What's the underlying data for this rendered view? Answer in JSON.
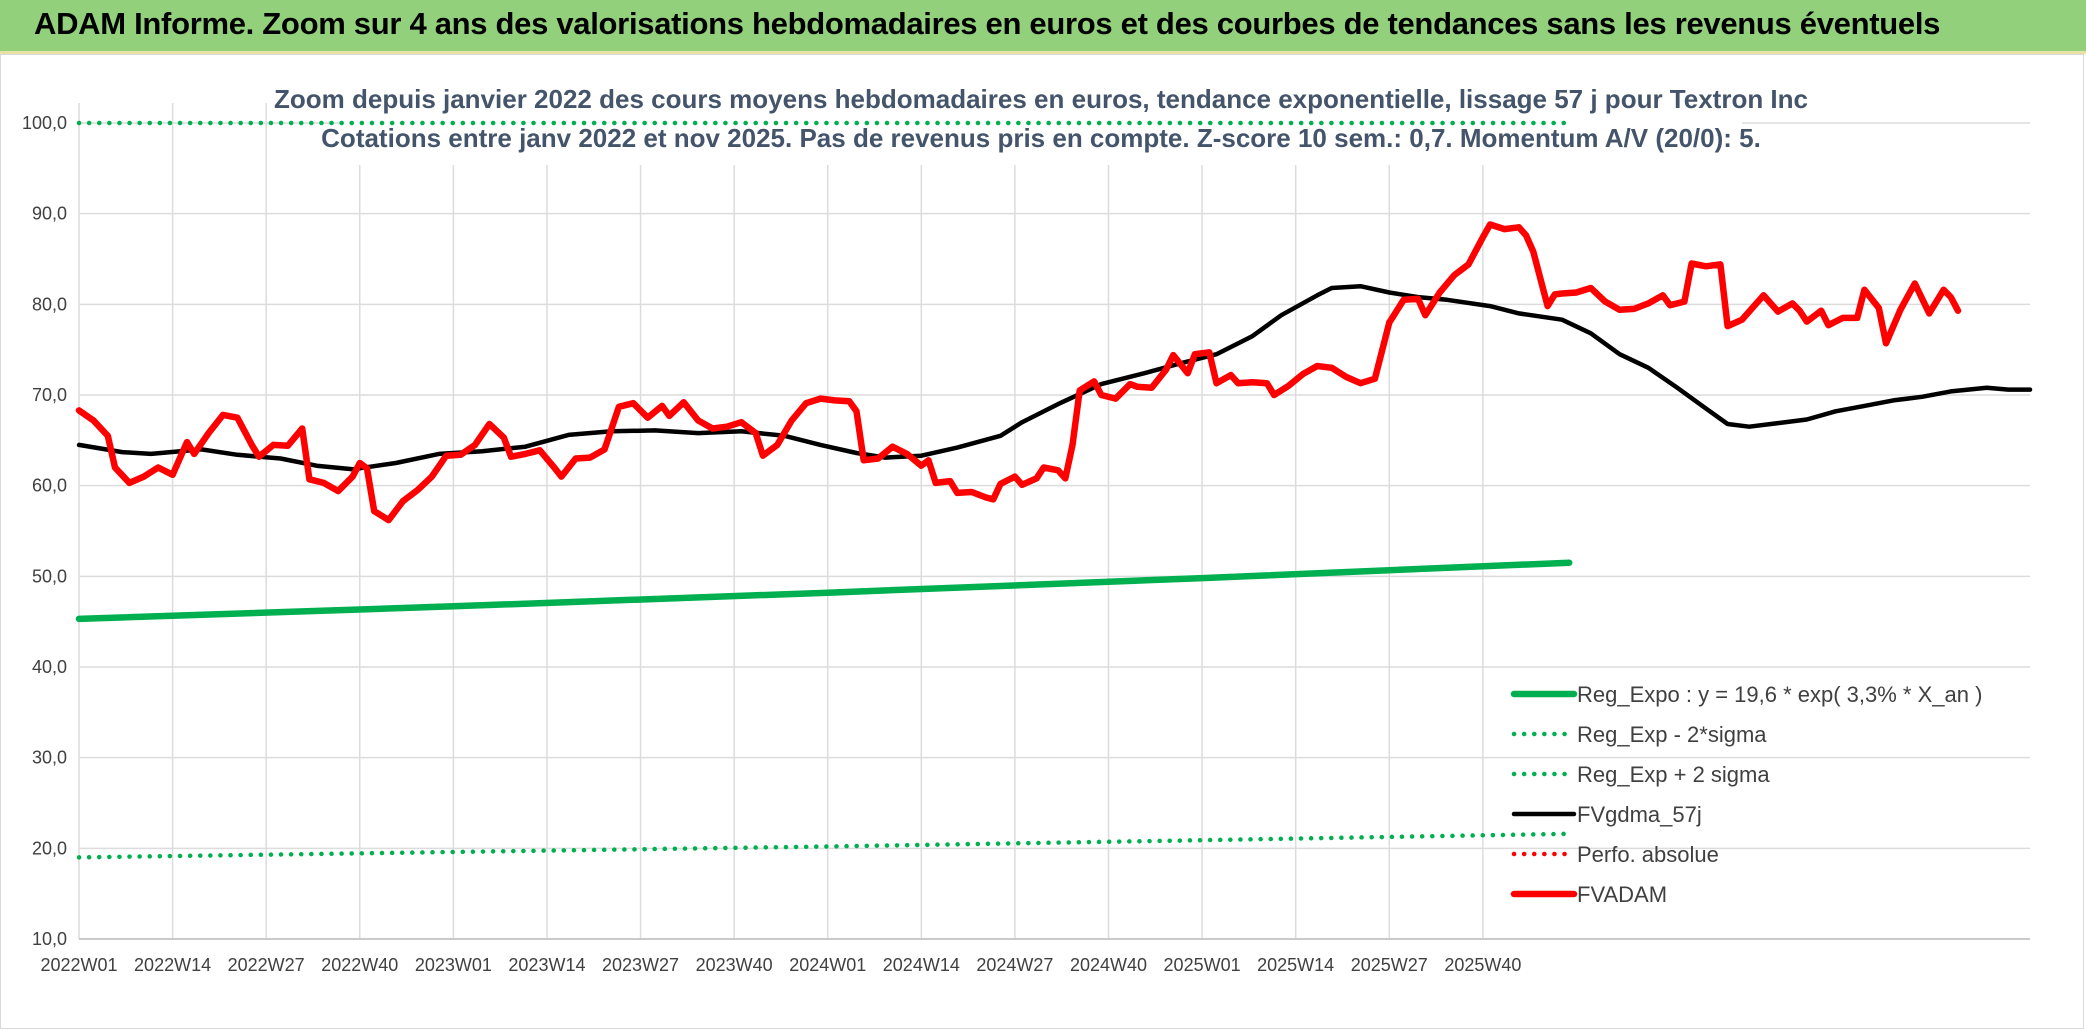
{
  "header": {
    "title": "ADAM Informe. Zoom sur 4 ans des valorisations hebdomadaires en euros et des courbes de tendances sans les revenus éventuels"
  },
  "chart_data": {
    "type": "line",
    "title_lines": [
      "Zoom depuis janvier 2022 des cours moyens hebdomadaires en euros, tendance exponentielle, lissage 57 j pour Textron Inc",
      "Cotations entre janv 2022 et nov 2025. Pas de revenus pris en compte. Z-score 10 sem.: 0,7. Momentum A/V (20/0): 5."
    ],
    "xlabel": "",
    "ylabel": "",
    "ylim": [
      10,
      100
    ],
    "yticks": [
      "10,0",
      "20,0",
      "30,0",
      "40,0",
      "50,0",
      "60,0",
      "70,0",
      "80,0",
      "90,0",
      "100,0"
    ],
    "x_tick_labels": [
      "2022W01",
      "2022W14",
      "2022W27",
      "2022W40",
      "2023W01",
      "2023W14",
      "2023W27",
      "2023W40",
      "2024W01",
      "2024W14",
      "2024W27",
      "2024W40",
      "2025W01",
      "2025W14",
      "2025W27",
      "2025W40"
    ],
    "x_tick_step_weeks": 13,
    "n_weeks": 208,
    "grid": true,
    "legend_position": "bottom-right",
    "series": [
      {
        "name": "Reg_Expo : y = 19,6 * exp( 3,3% *  X_an )",
        "style": "solid-thick",
        "color": "#00b050",
        "keypoints": [
          [
            0,
            45.3
          ],
          [
            52,
            46.7
          ],
          [
            104,
            48.2
          ],
          [
            156,
            49.8
          ],
          [
            207,
            51.5
          ]
        ]
      },
      {
        "name": "Reg_Exp - 2*sigma",
        "style": "dotted",
        "color": "#00b050",
        "keypoints": [
          [
            0,
            19.0
          ],
          [
            52,
            19.6
          ],
          [
            104,
            20.2
          ],
          [
            156,
            20.9
          ],
          [
            207,
            21.6
          ]
        ]
      },
      {
        "name": "Reg_Exp + 2 sigma",
        "style": "dotted",
        "color": "#00b050",
        "keypoints": [
          [
            0,
            100.0
          ],
          [
            207,
            100.0
          ]
        ]
      },
      {
        "name": "FVgdma_57j",
        "style": "solid",
        "color": "#000000",
        "keypoints": [
          [
            0,
            64.5
          ],
          [
            6,
            63.7
          ],
          [
            10,
            63.5
          ],
          [
            17,
            64.0
          ],
          [
            22,
            63.4
          ],
          [
            28,
            63.0
          ],
          [
            33,
            62.2
          ],
          [
            38,
            61.8
          ],
          [
            44,
            62.5
          ],
          [
            50,
            63.5
          ],
          [
            56,
            63.8
          ],
          [
            62,
            64.3
          ],
          [
            68,
            65.6
          ],
          [
            74,
            66.0
          ],
          [
            80,
            66.1
          ],
          [
            86,
            65.8
          ],
          [
            92,
            66.0
          ],
          [
            98,
            65.5
          ],
          [
            103,
            64.5
          ],
          [
            108,
            63.6
          ],
          [
            112,
            63.1
          ],
          [
            117,
            63.3
          ],
          [
            122,
            64.2
          ],
          [
            128,
            65.5
          ],
          [
            131,
            67.0
          ],
          [
            136,
            69.0
          ],
          [
            142,
            71.2
          ],
          [
            148,
            72.4
          ],
          [
            153,
            73.5
          ],
          [
            158,
            74.5
          ],
          [
            163,
            76.5
          ],
          [
            167,
            78.8
          ],
          [
            172,
            81.0
          ],
          [
            174,
            81.8
          ],
          [
            178,
            82.0
          ],
          [
            182,
            81.3
          ],
          [
            186,
            80.8
          ],
          [
            190,
            80.5
          ],
          [
            196,
            79.8
          ],
          [
            200,
            79.0
          ],
          [
            206,
            78.3
          ],
          [
            210,
            76.8
          ],
          [
            214,
            74.5
          ],
          [
            218,
            73.0
          ],
          [
            222,
            70.8
          ],
          [
            226,
            68.5
          ],
          [
            229,
            66.8
          ],
          [
            232,
            66.5
          ],
          [
            236,
            66.9
          ],
          [
            240,
            67.3
          ],
          [
            244,
            68.2
          ],
          [
            248,
            68.8
          ],
          [
            252,
            69.4
          ],
          [
            256,
            69.8
          ],
          [
            260,
            70.4
          ],
          [
            265,
            70.8
          ],
          [
            268,
            70.6
          ],
          [
            271,
            70.6
          ]
        ]
      },
      {
        "name": "Perfo. absolue",
        "style": "dotted",
        "color": "#ff0000",
        "keypoints": []
      },
      {
        "name": "FVADAM",
        "style": "solid-thick",
        "color": "#ff0000",
        "keypoints": [
          [
            0,
            68.3
          ],
          [
            2,
            67.2
          ],
          [
            4,
            65.5
          ],
          [
            5,
            62.0
          ],
          [
            7,
            60.3
          ],
          [
            9,
            61.0
          ],
          [
            11,
            62.0
          ],
          [
            13,
            61.2
          ],
          [
            15,
            64.8
          ],
          [
            16,
            63.5
          ],
          [
            18,
            65.8
          ],
          [
            20,
            67.8
          ],
          [
            22,
            67.5
          ],
          [
            24,
            64.5
          ],
          [
            25,
            63.2
          ],
          [
            27,
            64.5
          ],
          [
            29,
            64.4
          ],
          [
            31,
            66.3
          ],
          [
            32,
            60.7
          ],
          [
            34,
            60.3
          ],
          [
            36,
            59.4
          ],
          [
            38,
            61.0
          ],
          [
            39,
            62.5
          ],
          [
            40,
            61.9
          ],
          [
            41,
            57.2
          ],
          [
            43,
            56.2
          ],
          [
            45,
            58.3
          ],
          [
            47,
            59.5
          ],
          [
            49,
            61.0
          ],
          [
            51,
            63.3
          ],
          [
            53,
            63.4
          ],
          [
            55,
            64.5
          ],
          [
            57,
            66.8
          ],
          [
            59,
            65.3
          ],
          [
            60,
            63.2
          ],
          [
            62,
            63.5
          ],
          [
            64,
            63.9
          ],
          [
            66,
            62.0
          ],
          [
            67,
            61.0
          ],
          [
            69,
            63.0
          ],
          [
            71,
            63.1
          ],
          [
            73,
            64.0
          ],
          [
            75,
            68.7
          ],
          [
            77,
            69.1
          ],
          [
            79,
            67.5
          ],
          [
            81,
            68.8
          ],
          [
            82,
            67.7
          ],
          [
            84,
            69.2
          ],
          [
            86,
            67.2
          ],
          [
            88,
            66.3
          ],
          [
            90,
            66.5
          ],
          [
            92,
            67.0
          ],
          [
            94,
            65.8
          ],
          [
            95,
            63.3
          ],
          [
            97,
            64.5
          ],
          [
            99,
            67.2
          ],
          [
            101,
            69.1
          ],
          [
            103,
            69.6
          ],
          [
            105,
            69.4
          ],
          [
            107,
            69.3
          ],
          [
            108,
            68.2
          ],
          [
            109,
            62.8
          ],
          [
            111,
            63.0
          ],
          [
            113,
            64.3
          ],
          [
            115,
            63.5
          ],
          [
            117,
            62.2
          ],
          [
            118,
            62.8
          ],
          [
            119,
            60.3
          ],
          [
            121,
            60.5
          ],
          [
            122,
            59.2
          ],
          [
            124,
            59.3
          ],
          [
            126,
            58.7
          ],
          [
            127,
            58.5
          ],
          [
            128,
            60.2
          ],
          [
            130,
            61.0
          ],
          [
            131,
            60.1
          ],
          [
            133,
            60.8
          ],
          [
            134,
            62.0
          ],
          [
            136,
            61.7
          ],
          [
            137,
            60.8
          ],
          [
            138,
            64.5
          ],
          [
            139,
            70.5
          ],
          [
            141,
            71.5
          ],
          [
            142,
            70.0
          ],
          [
            144,
            69.6
          ],
          [
            146,
            71.2
          ],
          [
            147,
            70.9
          ],
          [
            149,
            70.8
          ],
          [
            151,
            72.8
          ],
          [
            152,
            74.4
          ],
          [
            154,
            72.4
          ],
          [
            155,
            74.5
          ],
          [
            157,
            74.7
          ],
          [
            158,
            71.3
          ],
          [
            160,
            72.2
          ],
          [
            161,
            71.3
          ],
          [
            163,
            71.4
          ],
          [
            165,
            71.3
          ],
          [
            166,
            70.0
          ],
          [
            168,
            71.0
          ],
          [
            170,
            72.3
          ],
          [
            172,
            73.2
          ],
          [
            174,
            73.0
          ],
          [
            176,
            72.0
          ],
          [
            178,
            71.3
          ],
          [
            180,
            71.8
          ],
          [
            182,
            78.0
          ],
          [
            184,
            80.5
          ],
          [
            186,
            80.6
          ],
          [
            187,
            78.8
          ],
          [
            189,
            81.3
          ],
          [
            191,
            83.2
          ],
          [
            193,
            84.4
          ],
          [
            195,
            87.4
          ],
          [
            196,
            88.8
          ],
          [
            198,
            88.3
          ],
          [
            200,
            88.5
          ],
          [
            201,
            87.6
          ],
          [
            202,
            85.8
          ],
          [
            204,
            79.8
          ],
          [
            205,
            81.1
          ],
          [
            206,
            81.2
          ],
          [
            208,
            81.3
          ],
          [
            210,
            81.8
          ],
          [
            212,
            80.3
          ],
          [
            214,
            79.4
          ],
          [
            216,
            79.5
          ],
          [
            218,
            80.1
          ],
          [
            220,
            81.0
          ],
          [
            221,
            79.9
          ],
          [
            223,
            80.3
          ],
          [
            224,
            84.5
          ],
          [
            226,
            84.2
          ],
          [
            228,
            84.4
          ],
          [
            229,
            77.6
          ],
          [
            231,
            78.3
          ],
          [
            233,
            80.1
          ],
          [
            234,
            81.0
          ],
          [
            236,
            79.2
          ],
          [
            238,
            80.1
          ],
          [
            239,
            79.3
          ],
          [
            240,
            78.1
          ],
          [
            242,
            79.3
          ],
          [
            243,
            77.7
          ],
          [
            245,
            78.5
          ],
          [
            247,
            78.5
          ],
          [
            248,
            81.6
          ],
          [
            250,
            79.6
          ],
          [
            251,
            75.7
          ],
          [
            253,
            79.4
          ],
          [
            255,
            82.3
          ],
          [
            257,
            79.0
          ],
          [
            259,
            81.6
          ],
          [
            260,
            80.8
          ],
          [
            261,
            79.3
          ]
        ]
      }
    ]
  }
}
